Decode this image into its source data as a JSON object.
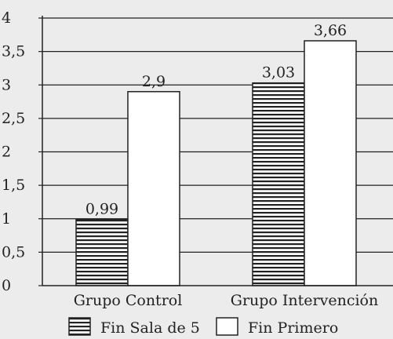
{
  "chart_data": {
    "type": "bar",
    "categories": [
      "Grupo Control",
      "Grupo Intervención"
    ],
    "series": [
      {
        "name": "Fin Sala de 5",
        "values": [
          0.99,
          3.03
        ],
        "labels": [
          "0,99",
          "3,03"
        ],
        "fill": "hatched"
      },
      {
        "name": "Fin Primero",
        "values": [
          2.9,
          3.66
        ],
        "labels": [
          "2,9",
          "3,66"
        ],
        "fill": "#ffffff"
      }
    ],
    "ylim": [
      0,
      4
    ],
    "yticks": [
      0,
      0.5,
      1,
      1.5,
      2,
      2.5,
      3,
      3.5,
      4
    ],
    "ytick_labels": [
      "0",
      "0,5",
      "1",
      "1,5",
      "2",
      "2,5",
      "3",
      "3,5",
      "4"
    ],
    "grid": true,
    "legend": "bottom",
    "colors": {
      "background": "#ececec",
      "ink": "#222222",
      "bar_fill": "#ffffff"
    }
  }
}
